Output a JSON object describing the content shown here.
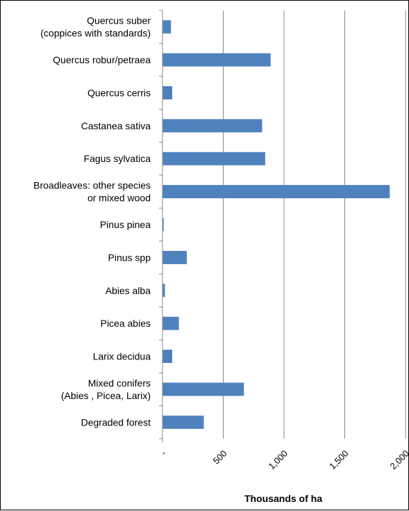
{
  "chart_data": {
    "type": "bar",
    "orientation": "horizontal",
    "categories": [
      "Quercus suber\n(coppices with standards)",
      "Quercus robur/petraea",
      "Quercus cerris",
      "Castanea sativa",
      "Fagus sylvatica",
      "Broadleaves: other species\nor mixed wood",
      "Pinus pinea",
      "Pinus spp",
      "Abies alba",
      "Picea abies",
      "Larix decidua",
      "Mixed conifers\n(Abies , Picea, Larix)",
      "Degraded forest"
    ],
    "values": [
      70,
      890,
      80,
      820,
      845,
      1870,
      10,
      200,
      20,
      135,
      80,
      670,
      340
    ],
    "xlabel": "Thousands of ha",
    "xlim": [
      0,
      2000
    ],
    "ticks": [
      0,
      500,
      1000,
      1500,
      2000
    ],
    "tick_labels": [
      "-",
      "500",
      "1,000",
      "1,500",
      "2,000"
    ],
    "grid": "vertical",
    "legend": "none",
    "bar_color": "#4F81BD"
  }
}
